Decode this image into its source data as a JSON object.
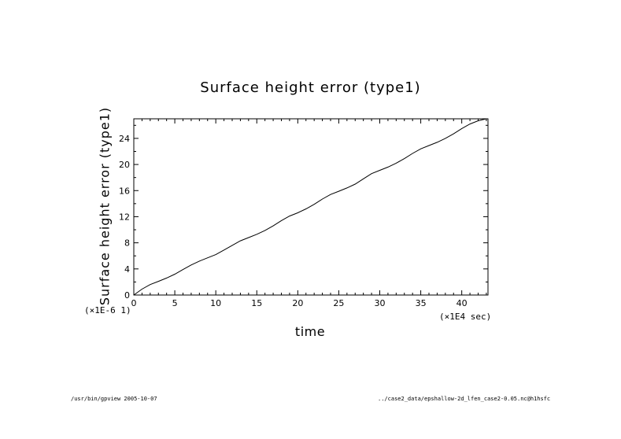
{
  "chart_data": {
    "type": "line",
    "title": "Surface height error (type1)",
    "xlabel": "time",
    "ylabel": "Surface height error (type1)",
    "x_unit": "(×1E4 sec)",
    "y_unit": "(×1E-6 1)",
    "xlim": [
      0,
      43.2
    ],
    "ylim": [
      0,
      27
    ],
    "x_ticks": [
      0,
      5,
      10,
      15,
      20,
      25,
      30,
      35,
      40
    ],
    "y_ticks": [
      0,
      4,
      8,
      12,
      16,
      20,
      24
    ],
    "grid": false,
    "series": [
      {
        "x": [
          0,
          1,
          2,
          3,
          4,
          5,
          6,
          7,
          8,
          9,
          10,
          11,
          12,
          13,
          14,
          15,
          16,
          17,
          18,
          19,
          20,
          21,
          22,
          23,
          24,
          25,
          26,
          27,
          28,
          29,
          30,
          31,
          32,
          33,
          34,
          35,
          36,
          37,
          38,
          39,
          40,
          41,
          42,
          43
        ],
        "y": [
          0,
          0.9,
          1.6,
          2.1,
          2.6,
          3.2,
          3.9,
          4.6,
          5.2,
          5.7,
          6.2,
          6.9,
          7.6,
          8.3,
          8.8,
          9.3,
          9.9,
          10.6,
          11.4,
          12.1,
          12.6,
          13.2,
          13.9,
          14.7,
          15.4,
          15.9,
          16.4,
          17.0,
          17.8,
          18.6,
          19.1,
          19.6,
          20.2,
          20.9,
          21.7,
          22.4,
          22.9,
          23.4,
          24.0,
          24.7,
          25.5,
          26.2,
          26.7,
          27.0
        ]
      }
    ]
  },
  "footer": {
    "left": "/usr/bin/gpview  2005-10-07",
    "right": "../case2_data/epshallow-2d_lfen_case2-0.05.nc@h1hsfc"
  }
}
